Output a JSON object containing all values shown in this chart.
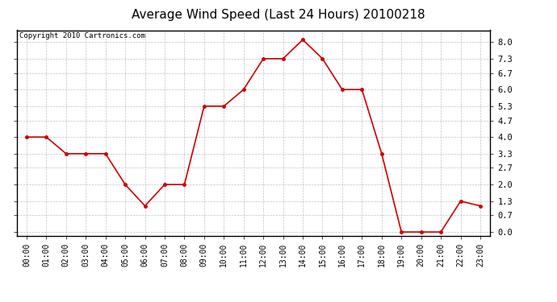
{
  "title": "Average Wind Speed (Last 24 Hours) 20100218",
  "copyright": "Copyright 2010 Cartronics.com",
  "hours": [
    "00:00",
    "01:00",
    "02:00",
    "03:00",
    "04:00",
    "05:00",
    "06:00",
    "07:00",
    "08:00",
    "09:00",
    "10:00",
    "11:00",
    "12:00",
    "13:00",
    "14:00",
    "15:00",
    "16:00",
    "17:00",
    "18:00",
    "19:00",
    "20:00",
    "21:00",
    "22:00",
    "23:00"
  ],
  "values": [
    4.0,
    4.0,
    3.3,
    3.3,
    3.3,
    2.0,
    1.1,
    2.0,
    2.0,
    5.3,
    5.3,
    6.0,
    7.3,
    7.3,
    8.1,
    7.3,
    6.0,
    6.0,
    3.3,
    0.0,
    0.0,
    0.0,
    1.3,
    1.1
  ],
  "line_color": "#cc0000",
  "marker": "o",
  "marker_size": 2.5,
  "bg_color": "#ffffff",
  "grid_color": "#bbbbbb",
  "yticks": [
    0.0,
    0.7,
    1.3,
    2.0,
    2.7,
    3.3,
    4.0,
    4.7,
    5.3,
    6.0,
    6.7,
    7.3,
    8.0
  ],
  "ylim": [
    -0.15,
    8.5
  ],
  "title_fontsize": 11,
  "copyright_fontsize": 6.5,
  "tick_fontsize": 7,
  "ytick_fontsize": 7.5
}
